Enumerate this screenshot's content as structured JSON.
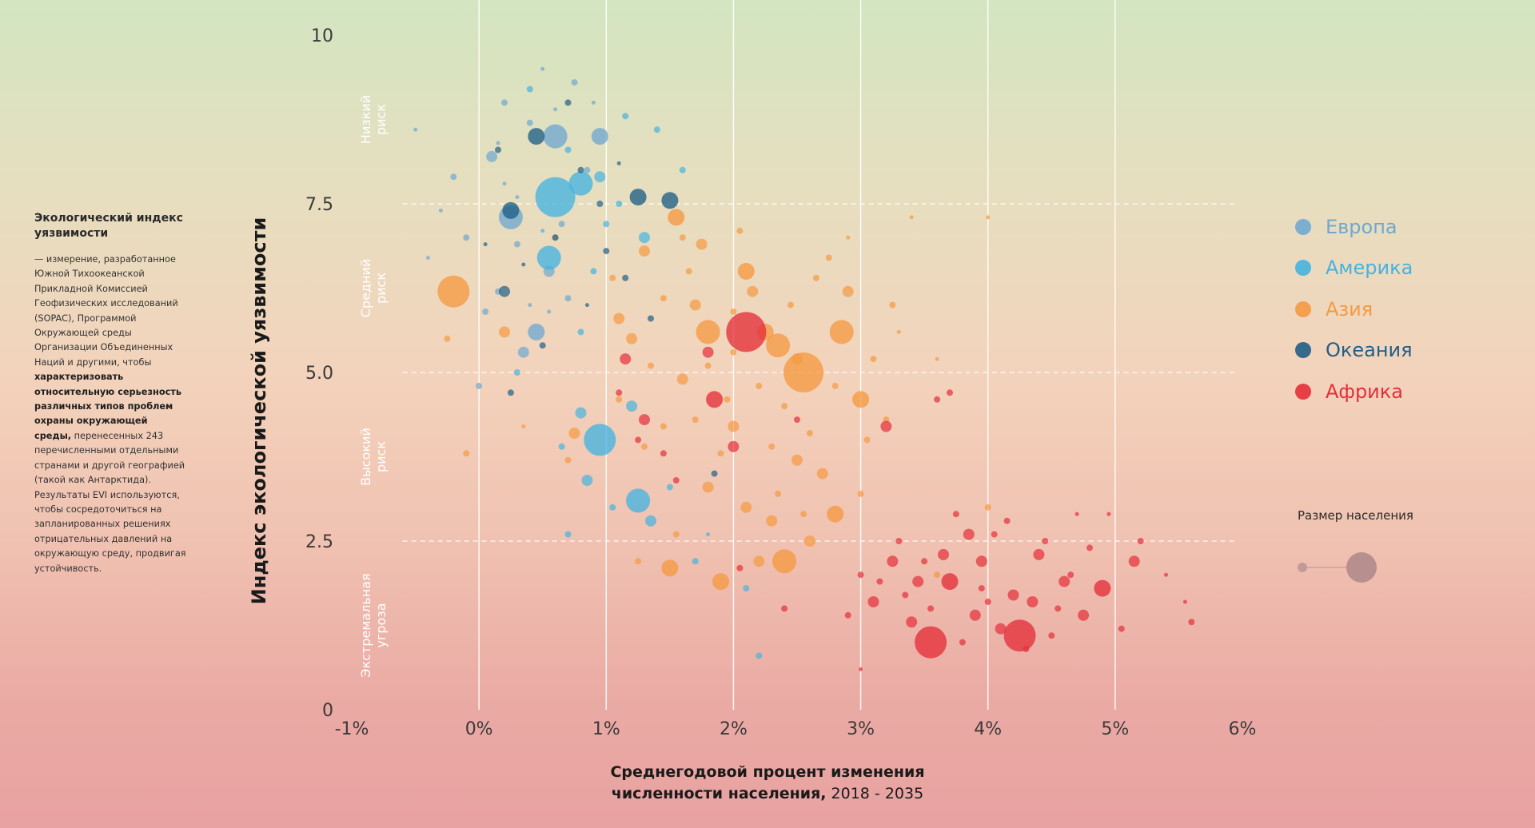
{
  "sidebar": {
    "title": "Экологический индекс уязвимости",
    "text_pre": "— измерение, разработанное Южной Тихоокеанской Прикладной Комиссией Геофизических исследований (SOPAC), Программой Окружающей среды Организации Объединенных Наций и другими, чтобы",
    "text_bold": "характеризовать относительную серьезность различных типов проблем охраны окружающей среды,",
    "text_post": " перенесенных 243 перечисленными отдельными странами и другой географией (такой как Антарктида). Результаты EVI используются, чтобы сосредоточиться на запланированных решениях отрицательных давлений на окружающую среду, продвигая устойчивость."
  },
  "chart_data": {
    "type": "scatter",
    "title": "",
    "xlabel_bold": "Среднегодовой процент изменения численности населения,",
    "xlabel_regular": " 2018 - 2035",
    "ylabel": "Индекс экологической уязвимости",
    "xlim": [
      -1,
      6
    ],
    "ylim": [
      0,
      10
    ],
    "x_ticks": [
      "-1%",
      "0%",
      "1%",
      "2%",
      "3%",
      "4%",
      "5%",
      "6%"
    ],
    "x_tick_values": [
      -1,
      0,
      1,
      2,
      3,
      4,
      5,
      6
    ],
    "y_ticks": [
      "0",
      "2.5",
      "5.0",
      "7.5",
      "10"
    ],
    "y_tick_values": [
      0,
      2.5,
      5,
      7.5,
      10
    ],
    "risk_bands": [
      {
        "label": "Низкий риск",
        "from": 7.5,
        "to": 10
      },
      {
        "label": "Средний риск",
        "from": 5,
        "to": 7.5
      },
      {
        "label": "Высокий риск",
        "from": 2.5,
        "to": 5
      },
      {
        "label": "Экстремальная угроза",
        "from": 0,
        "to": 2.5
      }
    ],
    "series": [
      {
        "name": "Европа",
        "color": "#6fa8d0",
        "points": [
          [
            0.2,
            9.0,
            2
          ],
          [
            0.6,
            8.5,
            5
          ],
          [
            0.95,
            8.5,
            4
          ],
          [
            0.25,
            7.3,
            5
          ],
          [
            0.55,
            6.5,
            3
          ],
          [
            0.15,
            6.2,
            2
          ],
          [
            0.45,
            5.6,
            4
          ],
          [
            0.0,
            4.8,
            2
          ],
          [
            -0.2,
            7.9,
            2
          ],
          [
            0.1,
            8.2,
            3
          ],
          [
            0.75,
            9.3,
            2
          ],
          [
            0.4,
            8.7,
            2
          ],
          [
            -0.5,
            8.6,
            1
          ],
          [
            0.3,
            6.9,
            2
          ],
          [
            0.65,
            7.2,
            2
          ],
          [
            -0.1,
            7.0,
            2
          ],
          [
            0.5,
            9.5,
            1
          ],
          [
            0.85,
            8.0,
            2
          ],
          [
            0.35,
            5.3,
            3
          ],
          [
            0.05,
            5.9,
            2
          ],
          [
            -0.3,
            7.4,
            1
          ],
          [
            0.7,
            6.1,
            2
          ],
          [
            0.2,
            7.8,
            1
          ],
          [
            0.6,
            8.9,
            1
          ],
          [
            0.15,
            8.4,
            1
          ],
          [
            0.4,
            6.0,
            1
          ],
          [
            -0.4,
            6.7,
            1
          ],
          [
            0.9,
            9.0,
            1
          ],
          [
            0.3,
            7.6,
            1
          ],
          [
            0.55,
            5.9,
            1
          ]
        ]
      },
      {
        "name": "Америка",
        "color": "#46b3e0",
        "points": [
          [
            0.6,
            7.6,
            7
          ],
          [
            0.8,
            7.8,
            5
          ],
          [
            0.55,
            6.7,
            5
          ],
          [
            0.95,
            4.0,
            6
          ],
          [
            1.25,
            3.1,
            5
          ],
          [
            0.85,
            3.4,
            3
          ],
          [
            1.35,
            2.8,
            3
          ],
          [
            0.7,
            2.6,
            2
          ],
          [
            1.7,
            2.2,
            2
          ],
          [
            2.2,
            0.8,
            2
          ],
          [
            1.3,
            7.0,
            3
          ],
          [
            0.95,
            7.9,
            3
          ],
          [
            0.3,
            5.0,
            2
          ],
          [
            1.1,
            7.5,
            2
          ],
          [
            1.4,
            8.6,
            2
          ],
          [
            0.8,
            4.4,
            3
          ],
          [
            1.6,
            8.0,
            2
          ],
          [
            0.4,
            9.2,
            2
          ],
          [
            1.5,
            3.3,
            2
          ],
          [
            1.0,
            7.2,
            2
          ],
          [
            0.8,
            5.6,
            2
          ],
          [
            1.2,
            4.5,
            3
          ],
          [
            0.9,
            6.5,
            2
          ],
          [
            0.7,
            8.3,
            2
          ],
          [
            1.15,
            8.8,
            2
          ],
          [
            0.5,
            7.1,
            1
          ],
          [
            1.05,
            3.0,
            2
          ],
          [
            1.8,
            2.6,
            1
          ],
          [
            2.1,
            1.8,
            2
          ],
          [
            0.65,
            3.9,
            2
          ]
        ]
      },
      {
        "name": "Азия",
        "color": "#f59a42",
        "points": [
          [
            -0.2,
            6.2,
            6
          ],
          [
            2.55,
            5.0,
            7
          ],
          [
            2.35,
            5.4,
            5
          ],
          [
            1.8,
            5.6,
            5
          ],
          [
            2.25,
            5.6,
            4
          ],
          [
            2.85,
            5.6,
            5
          ],
          [
            3.0,
            4.6,
            4
          ],
          [
            2.8,
            2.9,
            4
          ],
          [
            2.4,
            2.2,
            5
          ],
          [
            1.5,
            2.1,
            4
          ],
          [
            1.9,
            1.9,
            4
          ],
          [
            1.55,
            7.3,
            4
          ],
          [
            2.1,
            6.5,
            4
          ],
          [
            1.7,
            6.0,
            3
          ],
          [
            0.75,
            4.1,
            3
          ],
          [
            1.2,
            5.5,
            3
          ],
          [
            1.6,
            4.9,
            3
          ],
          [
            2.0,
            4.2,
            3
          ],
          [
            2.5,
            3.7,
            3
          ],
          [
            2.3,
            2.8,
            3
          ],
          [
            1.8,
            3.3,
            3
          ],
          [
            2.1,
            3.0,
            3
          ],
          [
            1.3,
            6.8,
            3
          ],
          [
            2.9,
            6.2,
            3
          ],
          [
            2.7,
            3.5,
            3
          ],
          [
            1.1,
            5.8,
            3
          ],
          [
            0.2,
            5.6,
            3
          ],
          [
            -0.25,
            5.5,
            2
          ],
          [
            2.6,
            2.5,
            3
          ],
          [
            1.75,
            6.9,
            3
          ],
          [
            1.95,
            4.6,
            2
          ],
          [
            3.1,
            5.2,
            2
          ],
          [
            2.45,
            6.0,
            2
          ],
          [
            1.45,
            4.2,
            2
          ],
          [
            2.2,
            4.8,
            2
          ],
          [
            0.7,
            3.7,
            2
          ],
          [
            1.05,
            6.4,
            2
          ],
          [
            3.4,
            7.3,
            1
          ],
          [
            4.0,
            7.3,
            1
          ],
          [
            3.0,
            3.2,
            2
          ],
          [
            2.75,
            6.7,
            2
          ],
          [
            1.65,
            6.5,
            2
          ],
          [
            1.35,
            5.1,
            2
          ],
          [
            2.0,
            5.9,
            2
          ],
          [
            1.9,
            3.8,
            2
          ],
          [
            2.6,
            4.1,
            2
          ],
          [
            2.35,
            3.2,
            2
          ],
          [
            1.55,
            2.6,
            2
          ],
          [
            0.6,
            7.0,
            2
          ],
          [
            2.05,
            7.1,
            2
          ],
          [
            3.25,
            6.0,
            2
          ],
          [
            3.05,
            4.0,
            2
          ],
          [
            2.9,
            7.0,
            1
          ],
          [
            3.3,
            5.6,
            1
          ],
          [
            3.6,
            5.2,
            1
          ],
          [
            4.0,
            3.0,
            2
          ],
          [
            3.6,
            2.0,
            2
          ],
          [
            2.2,
            2.2,
            3
          ],
          [
            1.3,
            3.9,
            2
          ],
          [
            2.5,
            5.2,
            3
          ],
          [
            1.45,
            6.1,
            2
          ],
          [
            2.8,
            4.8,
            2
          ],
          [
            -0.1,
            3.8,
            2
          ],
          [
            0.35,
            4.2,
            1
          ],
          [
            1.8,
            5.1,
            2
          ],
          [
            2.15,
            6.2,
            3
          ],
          [
            1.6,
            7.0,
            2
          ],
          [
            2.4,
            4.5,
            2
          ],
          [
            2.0,
            5.3,
            2
          ],
          [
            1.7,
            4.3,
            2
          ],
          [
            2.65,
            6.4,
            2
          ],
          [
            1.25,
            2.2,
            2
          ],
          [
            2.3,
            3.9,
            2
          ],
          [
            3.2,
            4.3,
            2
          ],
          [
            1.1,
            4.6,
            2
          ],
          [
            2.55,
            2.9,
            2
          ]
        ]
      },
      {
        "name": "Океания",
        "color": "#1f5f87",
        "points": [
          [
            1.25,
            7.6,
            4
          ],
          [
            1.5,
            7.55,
            4
          ],
          [
            0.45,
            8.5,
            4
          ],
          [
            0.25,
            7.4,
            4
          ],
          [
            0.2,
            6.2,
            3
          ],
          [
            0.6,
            7.0,
            2
          ],
          [
            1.15,
            6.4,
            2
          ],
          [
            1.35,
            5.8,
            2
          ],
          [
            1.85,
            3.5,
            2
          ],
          [
            0.95,
            7.5,
            2
          ],
          [
            0.8,
            8.0,
            2
          ],
          [
            0.25,
            4.7,
            2
          ],
          [
            1.0,
            6.8,
            2
          ],
          [
            0.5,
            5.4,
            2
          ],
          [
            0.15,
            8.3,
            2
          ],
          [
            0.7,
            9.0,
            2
          ],
          [
            1.1,
            8.1,
            1
          ],
          [
            0.35,
            6.6,
            1
          ],
          [
            0.85,
            6.0,
            1
          ],
          [
            0.05,
            6.9,
            1
          ]
        ]
      },
      {
        "name": "Африка",
        "color": "#e42f3a",
        "points": [
          [
            2.1,
            5.6,
            7
          ],
          [
            1.85,
            4.6,
            4
          ],
          [
            2.0,
            3.9,
            3
          ],
          [
            1.8,
            5.3,
            3
          ],
          [
            1.3,
            4.3,
            3
          ],
          [
            1.15,
            5.2,
            3
          ],
          [
            1.25,
            4.0,
            2
          ],
          [
            3.55,
            1.0,
            6
          ],
          [
            4.25,
            1.1,
            6
          ],
          [
            3.7,
            1.9,
            4
          ],
          [
            4.9,
            1.8,
            4
          ],
          [
            4.35,
            1.6,
            3
          ],
          [
            3.25,
            2.2,
            3
          ],
          [
            3.1,
            1.6,
            3
          ],
          [
            3.45,
            1.9,
            3
          ],
          [
            3.95,
            2.2,
            3
          ],
          [
            4.1,
            1.2,
            3
          ],
          [
            4.4,
            2.3,
            3
          ],
          [
            5.15,
            2.2,
            3
          ],
          [
            3.85,
            2.6,
            3
          ],
          [
            4.6,
            1.9,
            3
          ],
          [
            3.2,
            4.2,
            3
          ],
          [
            3.4,
            1.3,
            3
          ],
          [
            4.75,
            1.4,
            3
          ],
          [
            3.65,
            2.3,
            3
          ],
          [
            4.2,
            1.7,
            3
          ],
          [
            3.9,
            1.4,
            3
          ],
          [
            4.5,
            1.1,
            2
          ],
          [
            3.0,
            2.0,
            2
          ],
          [
            4.05,
            2.6,
            2
          ],
          [
            4.65,
            2.0,
            2
          ],
          [
            5.2,
            2.5,
            2
          ],
          [
            3.75,
            2.9,
            2
          ],
          [
            3.5,
            2.2,
            2
          ],
          [
            5.6,
            1.3,
            2
          ],
          [
            4.3,
            0.9,
            2
          ],
          [
            3.35,
            1.7,
            2
          ],
          [
            2.9,
            1.4,
            2
          ],
          [
            3.8,
            1.0,
            2
          ],
          [
            4.15,
            2.8,
            2
          ],
          [
            4.45,
            2.5,
            2
          ],
          [
            4.8,
            2.4,
            2
          ],
          [
            5.05,
            1.2,
            2
          ],
          [
            3.6,
            4.6,
            2
          ],
          [
            2.5,
            4.3,
            2
          ],
          [
            1.55,
            3.4,
            2
          ],
          [
            3.0,
            0.6,
            1
          ],
          [
            2.4,
            1.5,
            2
          ],
          [
            4.95,
            2.9,
            1
          ],
          [
            3.95,
            1.8,
            2
          ],
          [
            5.4,
            2.0,
            1
          ],
          [
            4.55,
            1.5,
            2
          ],
          [
            3.15,
            1.9,
            2
          ],
          [
            4.7,
            2.9,
            1
          ],
          [
            5.55,
            1.6,
            1
          ],
          [
            3.55,
            1.5,
            2
          ],
          [
            4.0,
            1.6,
            2
          ],
          [
            3.3,
            2.5,
            2
          ],
          [
            3.7,
            4.7,
            2
          ],
          [
            2.05,
            2.1,
            2
          ],
          [
            1.1,
            4.7,
            2
          ],
          [
            1.45,
            3.8,
            2
          ]
        ]
      }
    ]
  },
  "legend": {
    "items": [
      {
        "label": "Европа",
        "color": "#6fa8d0"
      },
      {
        "label": "Америка",
        "color": "#46b3e0"
      },
      {
        "label": "Азия",
        "color": "#f59a42"
      },
      {
        "label": "Океания",
        "color": "#1f5f87"
      },
      {
        "label": "Африка",
        "color": "#e42f3a"
      }
    ],
    "size_title": "Размер населения"
  }
}
